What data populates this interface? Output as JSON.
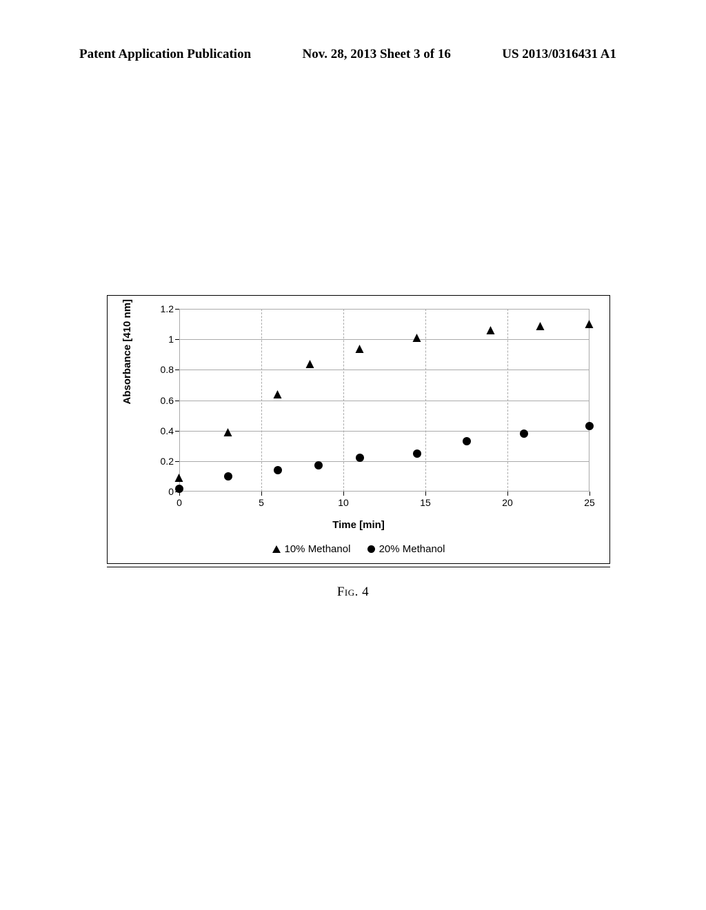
{
  "header": {
    "left": "Patent Application Publication",
    "center": "Nov. 28, 2013  Sheet 3 of 16",
    "right": "US 2013/0316431 A1"
  },
  "caption": "Fig. 4",
  "chart": {
    "type": "scatter",
    "x_axis": {
      "title": "Time [min]",
      "min": 0,
      "max": 25,
      "tick_step": 5,
      "ticks": [
        "0",
        "5",
        "10",
        "15",
        "20",
        "25"
      ]
    },
    "y_axis": {
      "title": "Absorbance [410 nm]",
      "min": 0,
      "max": 1.2,
      "tick_step": 0.2,
      "ticks": [
        "0",
        "0.2",
        "0.4",
        "0.6",
        "0.8",
        "1",
        "1.2"
      ]
    },
    "grid_color": "#aaaaaa",
    "background_color": "#ffffff",
    "border_color": "#000000",
    "series": [
      {
        "name": "10% Methanol",
        "marker": "triangle",
        "color": "#000000",
        "points": [
          {
            "x": 0,
            "y": 0.08
          },
          {
            "x": 3,
            "y": 0.38
          },
          {
            "x": 6,
            "y": 0.63
          },
          {
            "x": 8,
            "y": 0.83
          },
          {
            "x": 11,
            "y": 0.93
          },
          {
            "x": 14.5,
            "y": 1.0
          },
          {
            "x": 19,
            "y": 1.05
          },
          {
            "x": 22,
            "y": 1.08
          },
          {
            "x": 25,
            "y": 1.09
          }
        ]
      },
      {
        "name": "20% Methanol",
        "marker": "circle",
        "color": "#000000",
        "points": [
          {
            "x": 0,
            "y": 0.02
          },
          {
            "x": 3,
            "y": 0.1
          },
          {
            "x": 6,
            "y": 0.14
          },
          {
            "x": 8.5,
            "y": 0.17
          },
          {
            "x": 11,
            "y": 0.22
          },
          {
            "x": 14.5,
            "y": 0.25
          },
          {
            "x": 17.5,
            "y": 0.33
          },
          {
            "x": 21,
            "y": 0.38
          },
          {
            "x": 25,
            "y": 0.43
          }
        ]
      }
    ],
    "legend": {
      "items": [
        {
          "label": "10% Methanol",
          "marker": "triangle"
        },
        {
          "label": "20% Methanol",
          "marker": "circle"
        }
      ]
    }
  }
}
